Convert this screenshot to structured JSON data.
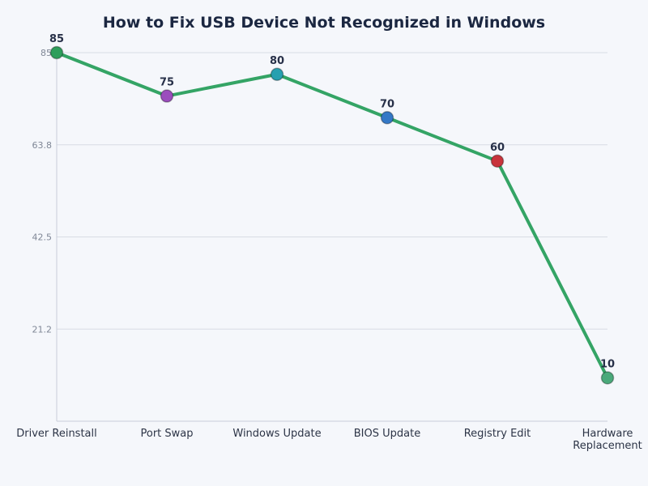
{
  "chart_data": {
    "type": "line",
    "title": "How to Fix USB Device Not Recognized in Windows",
    "categories": [
      "Driver Reinstall",
      "Port Swap",
      "Windows Update",
      "BIOS Update",
      "Registry Edit",
      "Hardware Replacement"
    ],
    "values": [
      85,
      75,
      80,
      70,
      60,
      10
    ],
    "ylim": [
      0,
      85
    ],
    "yticks": [
      "21.2",
      "42.5",
      "63.8",
      "85"
    ],
    "ytick_values": [
      21.25,
      42.5,
      63.75,
      85
    ],
    "grid": true,
    "line_color": "#34a465",
    "point_colors": [
      "#2e9e5b",
      "#9b4dbd",
      "#26a0b0",
      "#3478c6",
      "#c8343c",
      "#4aa97a"
    ],
    "xlabel": "",
    "ylabel": ""
  }
}
